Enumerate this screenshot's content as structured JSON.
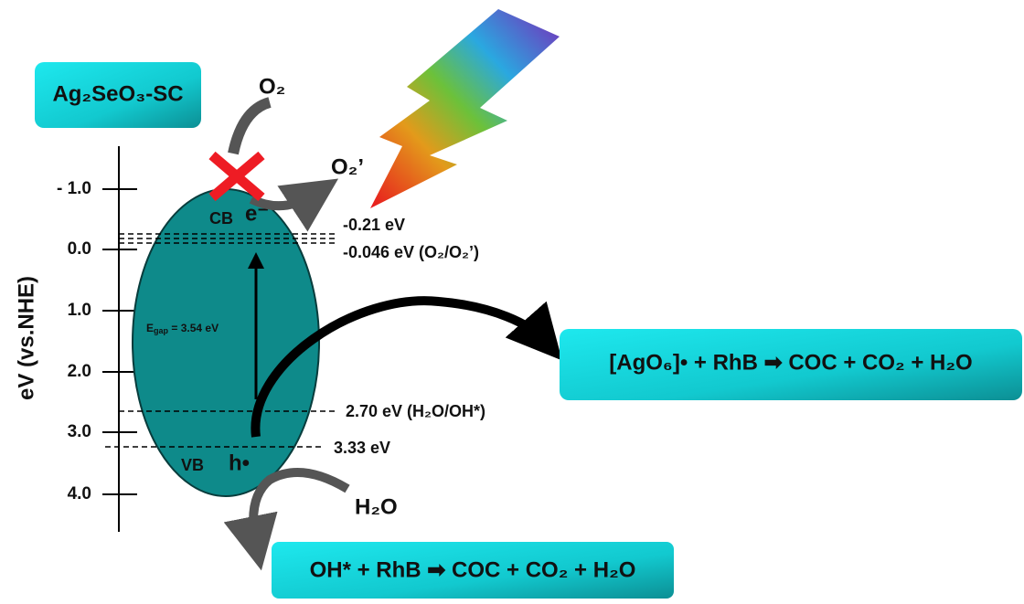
{
  "title_box": "Ag₂SeO₃-SC",
  "axis": {
    "label": "eV (vs.NHE)",
    "ticks": [
      "- 1.0",
      "0.0",
      "1.0",
      "2.0",
      "3.0",
      "4.0"
    ]
  },
  "bands": {
    "cb": "CB",
    "vb": "VB",
    "electron": "e⁻",
    "hole": "h•",
    "gap": {
      "symbol": "E",
      "subscript": "gap",
      "rest": " = 3.54 eV"
    }
  },
  "levels": [
    "-0.21 eV",
    "-0.046 eV  (O₂/O₂’)",
    "2.70 eV (H₂O/OH*)",
    "3.33 eV"
  ],
  "species": {
    "o2": "O₂",
    "superoxide": "O₂’",
    "water": "H₂O"
  },
  "reactions": [
    "[AgO₆]•  + RhB ➡ COC + CO₂ + H₂O",
    "OH* + RhB ➡ COC + CO₂ + H₂O"
  ]
}
